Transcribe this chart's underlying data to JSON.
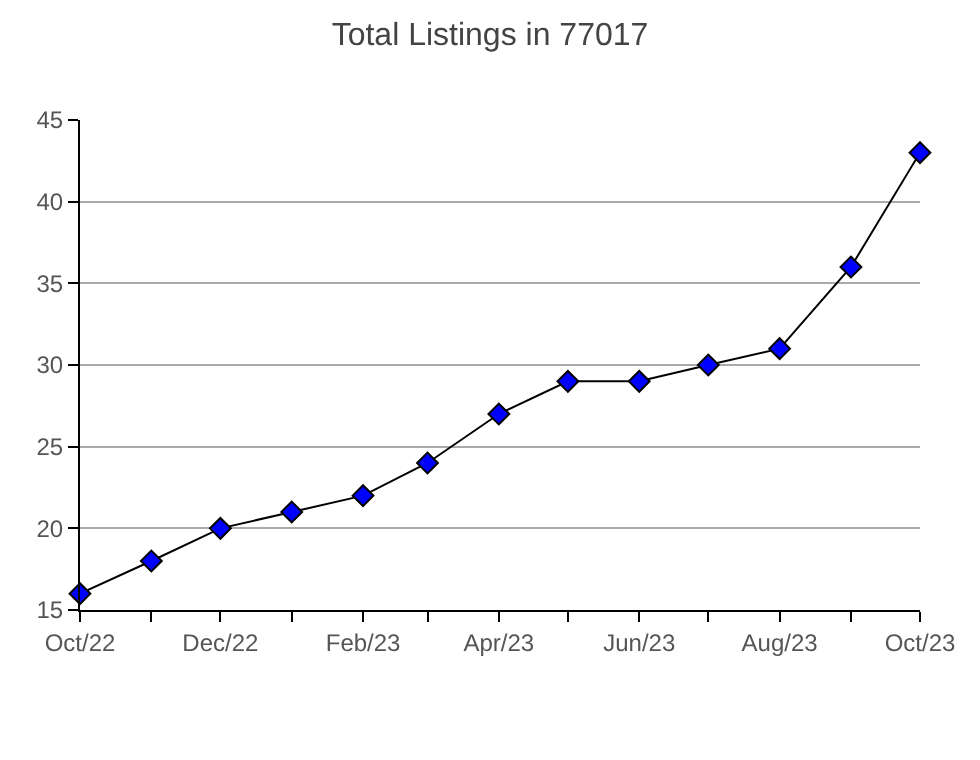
{
  "chart_data": {
    "type": "line",
    "title": "Total Listings in 77017",
    "x": [
      "2022-10-01",
      "2022-11-01",
      "2022-12-01",
      "2023-01-01",
      "2023-02-01",
      "2023-03-01",
      "2023-04-01",
      "2023-05-01",
      "2023-06-01",
      "2023-07-01",
      "2023-08-01",
      "2023-09-01",
      "2023-10-01"
    ],
    "series": [
      {
        "color": "#0000ff",
        "values": [
          16,
          18,
          20,
          21,
          22,
          24,
          27,
          29,
          29,
          30,
          31,
          36,
          43
        ]
      }
    ],
    "xlim": [
      "2022-10-01",
      "2023-10-01"
    ],
    "xticks": [
      {
        "value": "2022-10-01",
        "label": "Oct/22"
      },
      {
        "value": "2022-11-01",
        "label": null
      },
      {
        "value": "2022-12-01",
        "label": "Dec/22"
      },
      {
        "value": "2023-01-01",
        "label": null
      },
      {
        "value": "2023-02-01",
        "label": "Feb/23"
      },
      {
        "value": "2023-03-01",
        "label": null
      },
      {
        "value": "2023-04-01",
        "label": "Apr/23"
      },
      {
        "value": "2023-05-01",
        "label": null
      },
      {
        "value": "2023-06-01",
        "label": "Jun/23"
      },
      {
        "value": "2023-07-01",
        "label": null
      },
      {
        "value": "2023-08-01",
        "label": "Aug/23"
      },
      {
        "value": "2023-09-01",
        "label": null
      },
      {
        "value": "2023-10-01",
        "label": "Oct/23"
      }
    ],
    "ylim": [
      15,
      45
    ],
    "yticks": [
      15,
      20,
      25,
      30,
      35,
      40,
      45
    ],
    "grid": "y",
    "marker": "diamond",
    "line_style": "solid"
  }
}
